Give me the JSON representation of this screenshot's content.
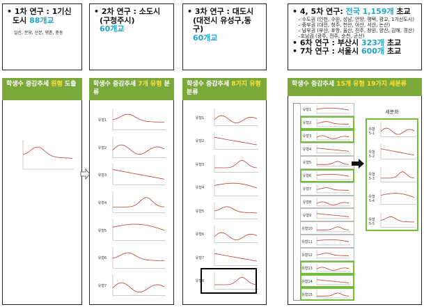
{
  "top_boxes": [
    {
      "lines": [
        {
          "bullet": true,
          "size": "big",
          "parts": [
            {
              "text": "1차 연구 : 1기신도시 ",
              "highlight": false
            },
            {
              "text": "88개교",
              "highlight": true
            }
          ]
        }
      ],
      "note": "일산, 분당, 산본, 평촌, 중동"
    },
    {
      "lines": [
        {
          "bullet": true,
          "size": "big",
          "parts": [
            {
              "text": "2차 연구 : 소도시(구청주시)",
              "highlight": false
            }
          ]
        },
        {
          "bullet": false,
          "size": "big",
          "parts": [
            {
              "text": "60개교",
              "highlight": true
            }
          ]
        }
      ]
    },
    {
      "lines": [
        {
          "bullet": true,
          "size": "big",
          "parts": [
            {
              "text": "3차 연구 : 대도시(대전시 유성구,동구)",
              "highlight": false
            }
          ]
        },
        {
          "bullet": false,
          "size": "big",
          "parts": [
            {
              "text": "60개교",
              "highlight": true
            }
          ]
        }
      ]
    },
    {
      "lines": [
        {
          "bullet": true,
          "size": "big",
          "parts": [
            {
              "text": "4, 5차 연구: ",
              "highlight": false
            },
            {
              "text": "전국 1,159개",
              "highlight": true
            },
            {
              "text": " 초교",
              "highlight": false
            }
          ]
        },
        {
          "bullet": false,
          "size": "small",
          "parts": [
            {
              "text": "– 수도권 (인천, 수원, 성남, 안양, 평택, 광교, 1기신도시)",
              "highlight": false
            }
          ]
        },
        {
          "bullet": false,
          "size": "small",
          "parts": [
            {
              "text": "– 중부권 (대전, 청주, 천안, 아산, 서산, 논산)",
              "highlight": false
            }
          ]
        },
        {
          "bullet": false,
          "size": "small",
          "parts": [
            {
              "text": "– 남부권 (부산, 포항, 울산, 진주, 창원, 양산, 김해, 경산)",
              "highlight": false
            }
          ]
        },
        {
          "bullet": false,
          "size": "small",
          "parts": [
            {
              "text": "–호남권 (광주, 전주, 순천, 군산)",
              "highlight": false
            }
          ]
        },
        {
          "bullet": true,
          "size": "big",
          "parts": [
            {
              "text": "6차 연구 : 부산시 ",
              "highlight": false
            },
            {
              "text": "323개",
              "highlight": true
            },
            {
              "text": " 초교",
              "highlight": false
            }
          ]
        },
        {
          "bullet": true,
          "size": "big",
          "parts": [
            {
              "text": "7차 연구 : 서울시 ",
              "highlight": false
            },
            {
              "text": "600개",
              "highlight": true
            },
            {
              "text": " 초교",
              "highlight": false
            }
          ]
        }
      ]
    }
  ],
  "panels": [
    {
      "header": [
        {
          "text": "학생수 증감추세 ",
          "highlight": false
        },
        {
          "text": "원형",
          "highlight": true
        },
        {
          "text": " 도출",
          "highlight": false
        }
      ],
      "labels": []
    },
    {
      "header": [
        {
          "text": "학생수 증감추세 ",
          "highlight": false
        },
        {
          "text": "7개 유형",
          "highlight": true
        },
        {
          "text": " 분류",
          "highlight": false
        }
      ],
      "labels": [
        "유형1",
        "유형2",
        "유형3",
        "유형4",
        "유형5",
        "유형6",
        "유형7"
      ]
    },
    {
      "header": [
        {
          "text": "학생수 증감추세 ",
          "highlight": false
        },
        {
          "text": "8가지 유형",
          "highlight": true
        },
        {
          "text": " 분류",
          "highlight": false
        }
      ],
      "labels": [
        "유형1",
        "유형2",
        "유형3",
        "유형4",
        "유형5",
        "유형6",
        "유형7",
        "유형8"
      ]
    },
    {
      "header": [
        {
          "text": "학생수 증감추세 ",
          "highlight": false
        },
        {
          "text": "15개 유형 19가지 세분류",
          "highlight": true
        }
      ],
      "labels": [
        "유형1",
        "유형2",
        "유형3",
        "유형4",
        "유형5",
        "유형6",
        "유형7",
        "유형8",
        "유형9",
        "유형10",
        "유형11",
        "유형12",
        "유형13",
        "유형14",
        "유형15"
      ],
      "detail": {
        "title": "세분화",
        "labels": [
          "유형 5-1",
          "유형 5-2",
          "유형 5-3",
          "유형 5-4",
          "유형 5-5"
        ]
      }
    }
  ]
}
